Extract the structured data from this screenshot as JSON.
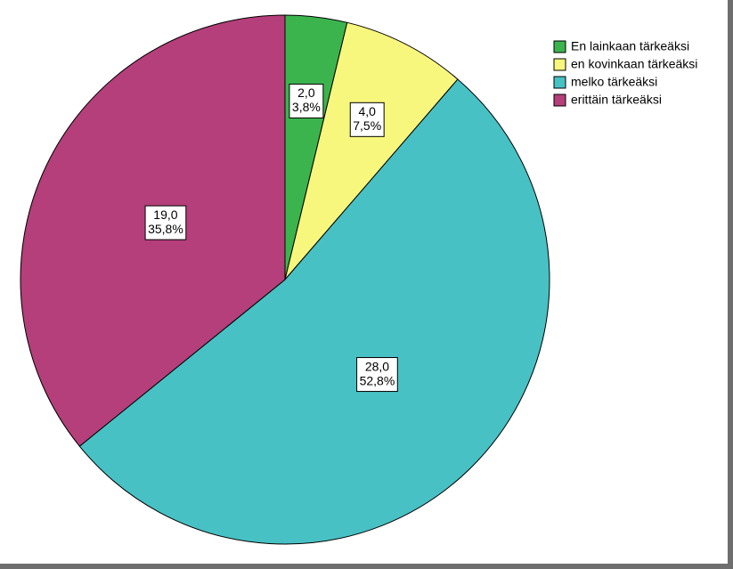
{
  "chart_data": {
    "type": "pie",
    "categories": [
      "En lainkaan tärkeäksi",
      "en kovinkaan tärkeäksi",
      "melko tärkeäksi",
      "erittäin tärkeäksi"
    ],
    "values": [
      2,
      4,
      28,
      19
    ],
    "value_labels": [
      "2,0",
      "4,0",
      "28,0",
      "19,0"
    ],
    "percents": [
      3.8,
      7.5,
      52.8,
      35.8
    ],
    "percent_labels": [
      "3,8%",
      "7,5%",
      "52,8%",
      "35,8%"
    ],
    "colors": [
      "#3cb44e",
      "#f8f77d",
      "#48c1c4",
      "#b43f7a"
    ],
    "legend": "top-right"
  }
}
